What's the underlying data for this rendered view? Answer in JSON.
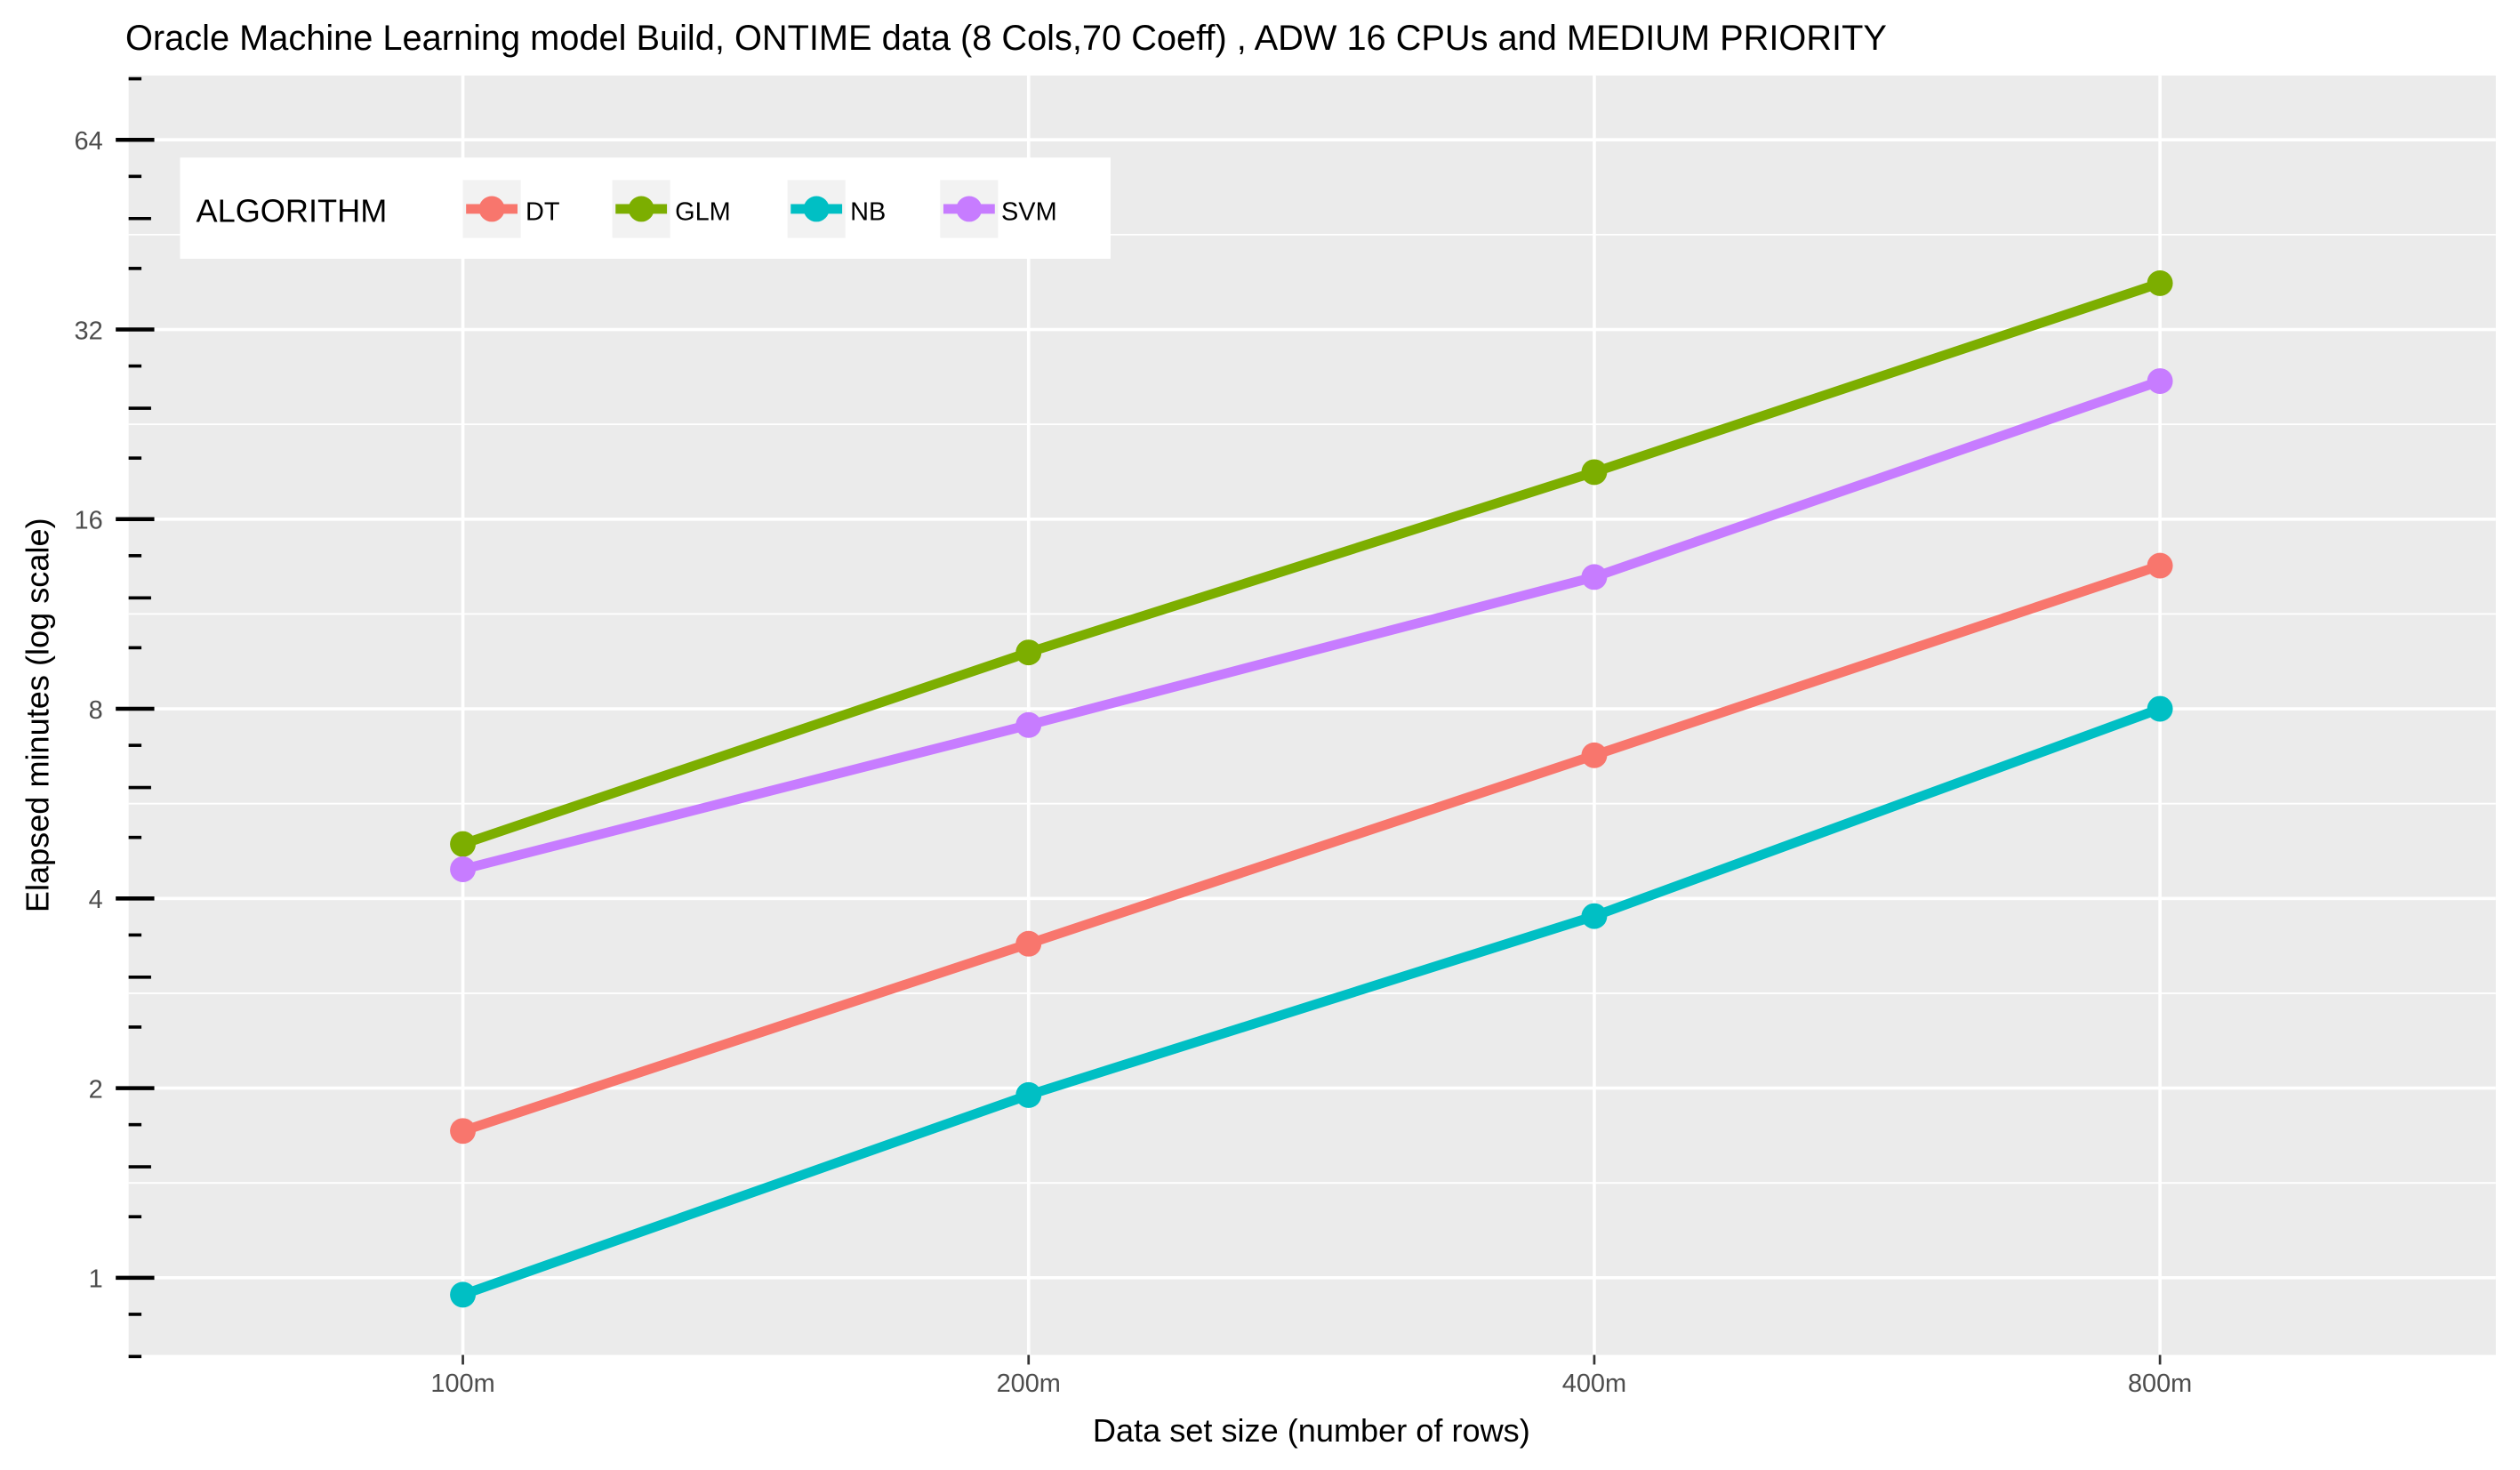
{
  "chart_data": {
    "type": "line",
    "title": "Oracle Machine Learning model Build, ONTIME data (8 Cols,70 Coeff) , ADW 16 CPUs and MEDIUM PRIORITY",
    "xlabel": "Data set size (number of rows)",
    "ylabel": "Elapsed minutes (log scale)",
    "y_scale": "log2",
    "ylim": [
      0.75,
      72
    ],
    "y_ticks": [
      1,
      2,
      4,
      8,
      16,
      32,
      64
    ],
    "y_tick_labels": [
      "1",
      "2",
      "4",
      "8",
      "16",
      "32",
      "64"
    ],
    "categories": [
      "100m",
      "200m",
      "400m",
      "800m"
    ],
    "legend": {
      "title": "ALGORITHM",
      "placement": "top-left"
    },
    "grid": true,
    "series": [
      {
        "name": "DT",
        "color": "#F8766D",
        "values": [
          1.71,
          3.39,
          6.75,
          13.5
        ]
      },
      {
        "name": "GLM",
        "color": "#7CAE00",
        "values": [
          4.88,
          9.83,
          19.0,
          37.9
        ]
      },
      {
        "name": "NB",
        "color": "#00BFC4",
        "values": [
          0.94,
          1.95,
          3.75,
          8.0
        ]
      },
      {
        "name": "SVM",
        "color": "#C77CFF",
        "values": [
          4.45,
          7.54,
          12.95,
          26.5
        ]
      }
    ]
  }
}
